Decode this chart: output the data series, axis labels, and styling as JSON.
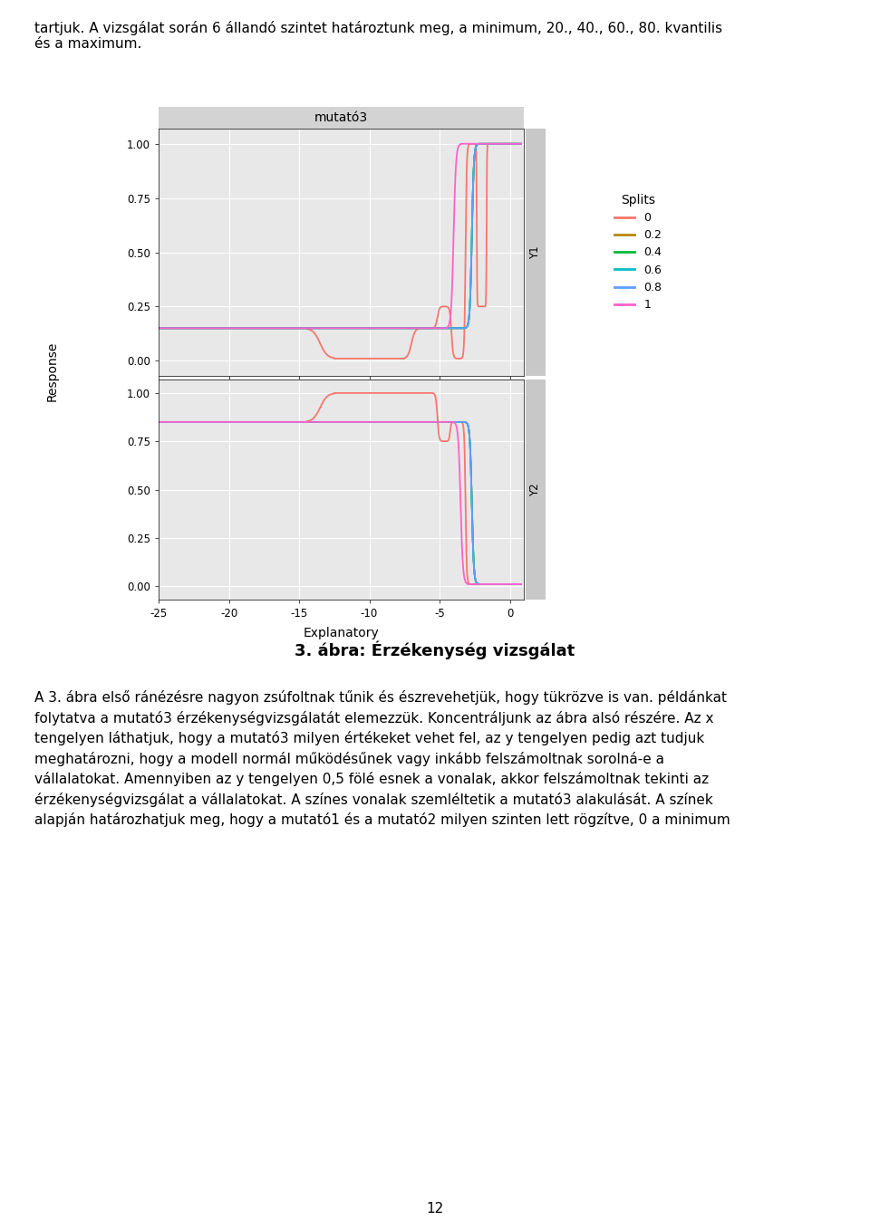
{
  "title": "mutató3",
  "xlabel": "Explanatory",
  "ylabel": "Response",
  "panel_labels": [
    "Y1",
    "Y2"
  ],
  "x_range": [
    -25,
    1
  ],
  "x_ticks": [
    -25,
    -20,
    -15,
    -10,
    -5,
    0
  ],
  "splits_labels": [
    "0",
    "0.2",
    "0.4",
    "0.6",
    "0.8",
    "1"
  ],
  "splits_values": [
    0.0,
    0.2,
    0.4,
    0.6,
    0.8,
    1.0
  ],
  "line_colors": [
    "#F8766D",
    "#B8860B",
    "#00BA38",
    "#00BFC4",
    "#619CFF",
    "#FF61CC"
  ],
  "background_color": "#E8E8E8",
  "strip_color": "#D3D3D3",
  "grid_color": "#FFFFFF",
  "legend_title": "Splits",
  "figsize": [
    9.6,
    13.58
  ],
  "dpi": 100,
  "top_text": "tartjuk. A vizsgálat során 6 állandó szintet határoztunk meg, a minimum, 20., 40., 60., 80. kvantilis\nés a maximum.",
  "caption": "3. ábra: Érzékenység vizsgálat",
  "bottom_text": "A 3. ábra első ránézésre nagyon zsúfoltnak tűnik és észrevehetjük, hogy tükrözve is van. példánkat\nfolytava a mutató3 érzékenységvizsgálatát elemezzük. Koncentráljunk az ábra alsó részére. Az x\ntengelyen láthatjuk, hogy a mutató3 milyen értékeket vehet fel, az y tengelyen pedig azt tudjuk\nmeghatározni, hogy a modell normál működésűnek vagy inkább felszámoltnak sorolná-e a\nvállalatokat. Amennyiben az y tengelyen 0,5 fölé esnek a vonalak, akkor felszámoltnak tekinti az\nérzékenységvizsgálat a vállalatokat. A színes vonalak szemléltetik a mutató3 alakulását. A színek\nalapján határozhatjuk meg, hogy a mutató1 és a mutató2 milyen szinten lett rögzítve, 0 a minimum",
  "page_num": "12"
}
